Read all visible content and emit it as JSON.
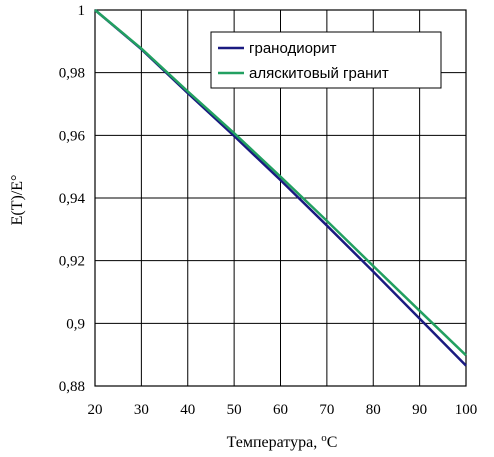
{
  "chart_data": {
    "type": "line",
    "xlabel": "Температура, ",
    "xlabel_sup": "o",
    "xlabel_unit": "C",
    "ylabel": "E(T)/E°",
    "xlim": [
      20,
      100
    ],
    "ylim": [
      0.88,
      1.0
    ],
    "x_ticks": [
      "20",
      "30",
      "40",
      "50",
      "60",
      "70",
      "80",
      "90",
      "100"
    ],
    "y_ticks": [
      "0,88",
      "0,9",
      "0,92",
      "0,94",
      "0,96",
      "0,98",
      "1"
    ],
    "grid": true,
    "legend_position": "top-right",
    "x": [
      20,
      30,
      40,
      50,
      60,
      70,
      80,
      90,
      100
    ],
    "series": [
      {
        "name": "гранодиорит",
        "color": "#1a1a80",
        "values": [
          1.0,
          0.9875,
          0.9735,
          0.9598,
          0.9457,
          0.9312,
          0.9165,
          0.9015,
          0.8865
        ]
      },
      {
        "name": "аляскитовый гранит",
        "color": "#22a061",
        "values": [
          1.0,
          0.9877,
          0.974,
          0.9607,
          0.9468,
          0.9327,
          0.9183,
          0.904,
          0.8898
        ]
      }
    ]
  }
}
